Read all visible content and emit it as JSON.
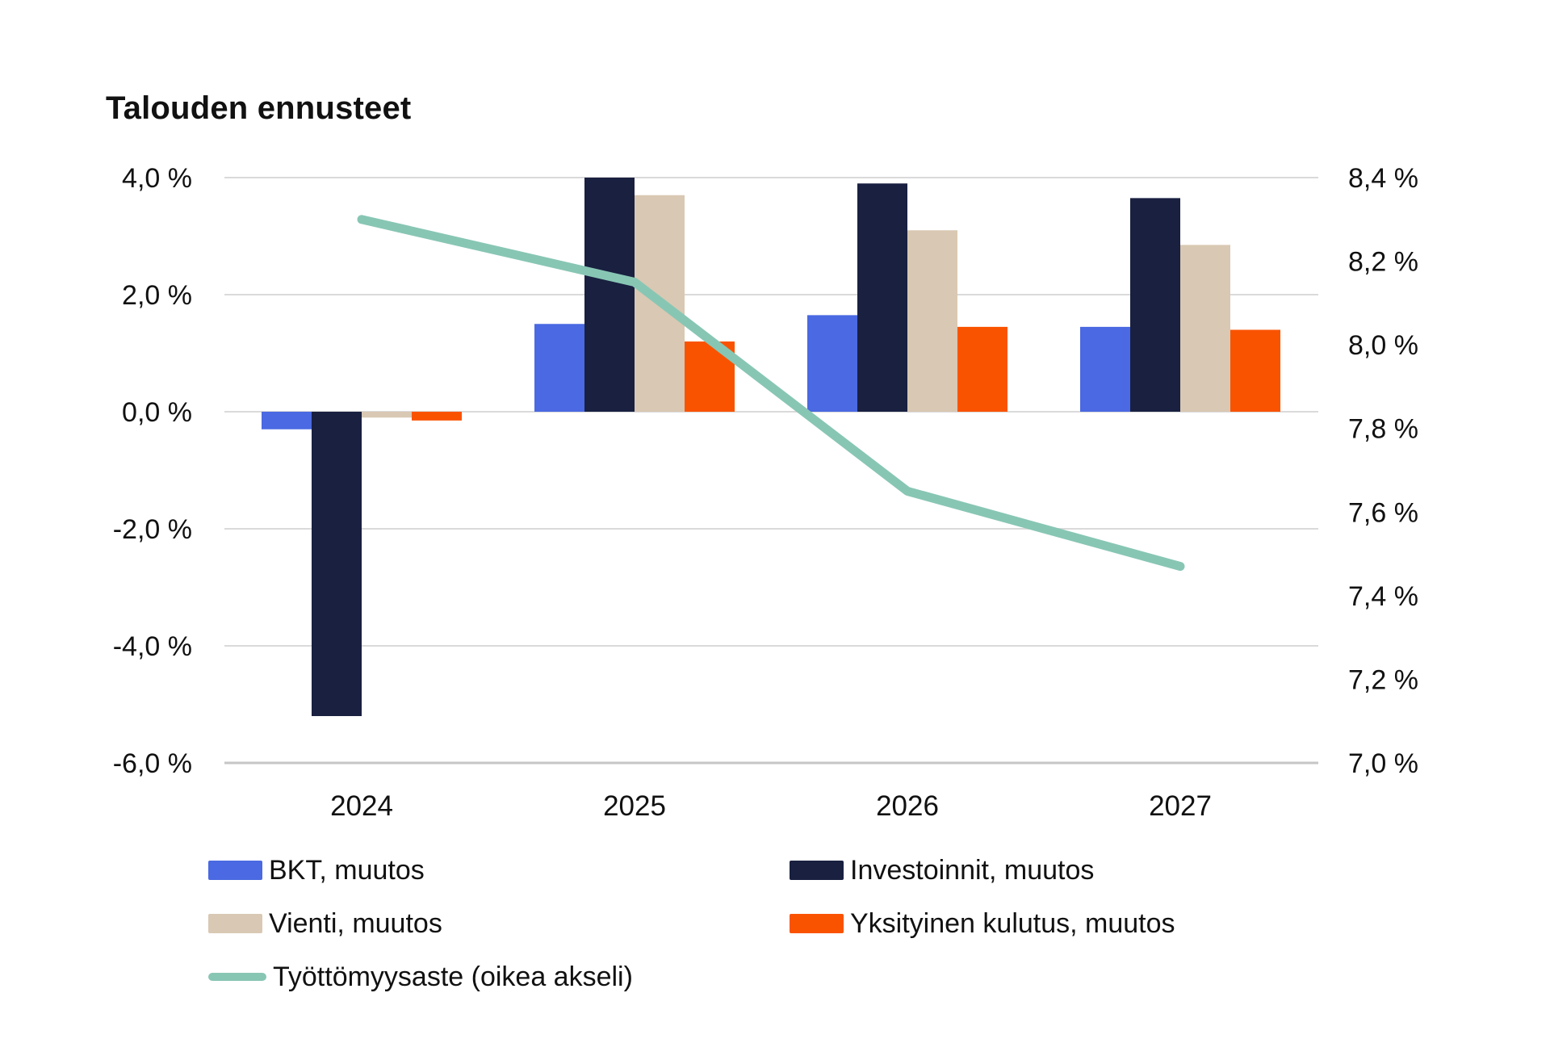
{
  "title": "Talouden ennusteet",
  "left_axis": {
    "ticks": [
      "4,0 %",
      "2,0 %",
      "0,0 %",
      "-2,0 %",
      "-4,0 %",
      "-6,0 %"
    ],
    "values": [
      4,
      2,
      0,
      -2,
      -4,
      -6
    ]
  },
  "right_axis": {
    "ticks": [
      "8,4 %",
      "8,2 %",
      "8,0 %",
      "7,8 %",
      "7,6 %",
      "7,4 %",
      "7,2 %",
      "7,0 %"
    ],
    "values": [
      8.4,
      8.2,
      8.0,
      7.8,
      7.6,
      7.4,
      7.2,
      7.0
    ]
  },
  "x_axis": {
    "labels": [
      "2024",
      "2025",
      "2026",
      "2027"
    ]
  },
  "chart_data": [
    {
      "type": "bar",
      "title": "Talouden ennusteet",
      "categories": [
        "2024",
        "2025",
        "2026",
        "2027"
      ],
      "ylim": [
        -6,
        4
      ],
      "ylabel": "",
      "xlabel": "",
      "grid": "horizontal",
      "legend_position": "bottom",
      "series": [
        {
          "name": "BKT, muutos",
          "color": "#4a69e2",
          "values": [
            -0.3,
            1.5,
            1.65,
            1.45
          ]
        },
        {
          "name": "Investoinnit, muutos",
          "color": "#192040",
          "values": [
            -5.2,
            4.0,
            3.9,
            3.65
          ]
        },
        {
          "name": "Vienti, muutos",
          "color": "#d9c8b3",
          "values": [
            -0.1,
            3.7,
            3.1,
            2.85
          ]
        },
        {
          "name": "Yksityinen kulutus, muutos",
          "color": "#fa5300",
          "values": [
            -0.15,
            1.2,
            1.45,
            1.4
          ]
        }
      ]
    },
    {
      "type": "line",
      "axis": "right",
      "name": "Työttömyysaste (oikea akseli)",
      "color": "#88c6b4",
      "x": [
        "2024",
        "2025",
        "2026",
        "2027"
      ],
      "values": [
        8.3,
        8.15,
        7.65,
        7.47
      ],
      "ylim": [
        7.0,
        8.4
      ]
    }
  ],
  "legend": {
    "items": [
      {
        "label": "BKT, muutos",
        "color": "#4a69e2",
        "type": "rect"
      },
      {
        "label": "Investoinnit, muutos",
        "color": "#192040",
        "type": "rect"
      },
      {
        "label": "Vienti, muutos",
        "color": "#d9c8b3",
        "type": "rect"
      },
      {
        "label": "Yksityinen kulutus, muutos",
        "color": "#fa5300",
        "type": "rect"
      },
      {
        "label": "Työttömyysaste (oikea akseli)",
        "color": "#88c6b4",
        "type": "line"
      }
    ]
  },
  "colors": {
    "grid": "#dadada",
    "axis_line": "#c6c6c6",
    "text": "#111111",
    "background": "#ffffff"
  }
}
